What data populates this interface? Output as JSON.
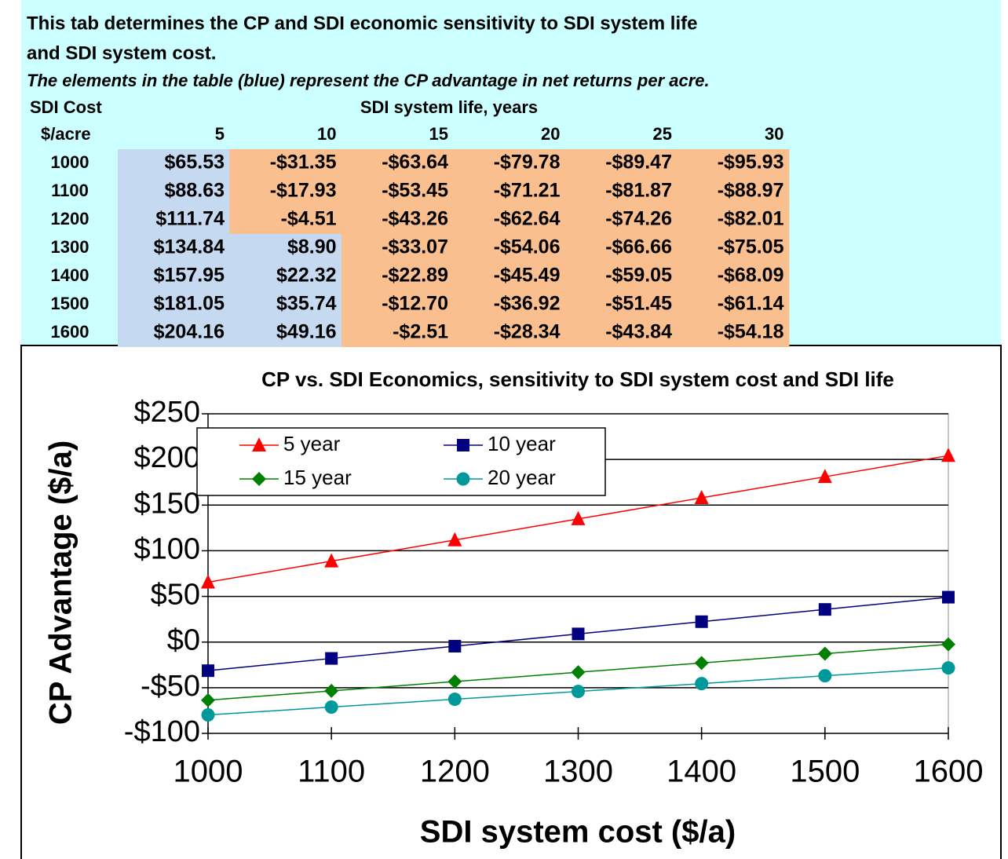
{
  "header": {
    "title": [
      "This tab determines the CP and SDI economic sensitivity to SDI system life",
      "and SDI system cost."
    ],
    "subtitle": "The elements in the table (blue) represent the CP advantage in net returns per acre."
  },
  "table": {
    "row_header": [
      "SDI Cost",
      "$/acre"
    ],
    "column_group": "SDI system life, years",
    "columns": [
      "5",
      "10",
      "15",
      "20",
      "25",
      "30"
    ],
    "rows": [
      {
        "cost": "1000",
        "cells": [
          "$65.53",
          "-$31.35",
          "-$63.64",
          "-$79.78",
          "-$89.47",
          "-$95.93"
        ]
      },
      {
        "cost": "1100",
        "cells": [
          "$88.63",
          "-$17.93",
          "-$53.45",
          "-$71.21",
          "-$81.87",
          "-$88.97"
        ]
      },
      {
        "cost": "1200",
        "cells": [
          "$111.74",
          "-$4.51",
          "-$43.26",
          "-$62.64",
          "-$74.26",
          "-$82.01"
        ]
      },
      {
        "cost": "1300",
        "cells": [
          "$134.84",
          "$8.90",
          "-$33.07",
          "-$54.06",
          "-$66.66",
          "-$75.05"
        ]
      },
      {
        "cost": "1400",
        "cells": [
          "$157.95",
          "$22.32",
          "-$22.89",
          "-$45.49",
          "-$59.05",
          "-$68.09"
        ]
      },
      {
        "cost": "1500",
        "cells": [
          "$181.05",
          "$35.74",
          "-$12.70",
          "-$36.92",
          "-$51.45",
          "-$61.14"
        ]
      },
      {
        "cost": "1600",
        "cells": [
          "$204.16",
          "$49.16",
          "-$2.51",
          "-$28.34",
          "-$43.84",
          "-$54.18"
        ]
      }
    ]
  },
  "chart_data": {
    "type": "line",
    "title": "CP vs. SDI Economics, sensitivity to SDI system cost and SDI life",
    "xlabel": "SDI system cost ($/a)",
    "ylabel": "CP Advantage ($/a)",
    "x": [
      1000,
      1100,
      1200,
      1300,
      1400,
      1500,
      1600
    ],
    "series": [
      {
        "name": "5 year",
        "color": "#ff0000",
        "marker": "triangle",
        "values": [
          65.53,
          88.63,
          111.74,
          134.84,
          157.95,
          181.05,
          204.16
        ]
      },
      {
        "name": "10 year",
        "color": "#000080",
        "marker": "square",
        "values": [
          -31.35,
          -17.93,
          -4.51,
          8.9,
          22.32,
          35.74,
          49.16
        ]
      },
      {
        "name": "15 year",
        "color": "#008000",
        "marker": "diamond",
        "values": [
          -63.64,
          -53.45,
          -43.26,
          -33.07,
          -22.89,
          -12.7,
          -2.51
        ]
      },
      {
        "name": "20 year",
        "color": "#009999",
        "marker": "circle",
        "values": [
          -79.78,
          -71.21,
          -62.64,
          -54.06,
          -45.49,
          -36.92,
          -28.34
        ]
      }
    ],
    "xlim": [
      1000,
      1600
    ],
    "xticks": [
      1000,
      1100,
      1200,
      1300,
      1400,
      1500,
      1600
    ],
    "ylim": [
      -100,
      250
    ],
    "yticks": [
      {
        "value": -100,
        "label": "-$100"
      },
      {
        "value": -50,
        "label": "-$50"
      },
      {
        "value": 0,
        "label": "$0"
      },
      {
        "value": 50,
        "label": "$50"
      },
      {
        "value": 100,
        "label": "$100"
      },
      {
        "value": 150,
        "label": "$150"
      },
      {
        "value": 200,
        "label": "$200"
      },
      {
        "value": 250,
        "label": "$250"
      }
    ],
    "grid": true,
    "legend": "top-left"
  }
}
